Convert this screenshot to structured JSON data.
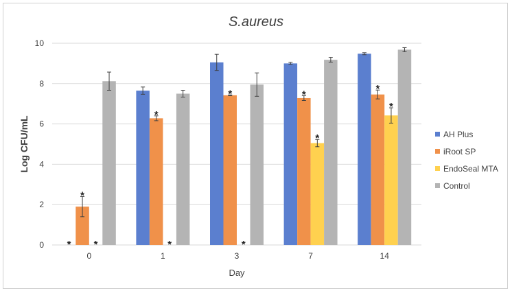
{
  "chart_data": {
    "type": "bar",
    "title": "S.aureus",
    "xlabel": "Day",
    "ylabel": "Log CFU/mL",
    "ylim": [
      0,
      10
    ],
    "yticks": [
      0,
      2,
      4,
      6,
      8,
      10
    ],
    "categories": [
      "0",
      "1",
      "3",
      "7",
      "14"
    ],
    "grid": true,
    "legend_position": "right",
    "series": [
      {
        "name": "AH Plus",
        "color": "#5b7fcf",
        "values": [
          0,
          7.65,
          9.05,
          9.0,
          9.48
        ],
        "errors": [
          0,
          0.18,
          0.4,
          0.05,
          0.05
        ],
        "significant": [
          true,
          false,
          false,
          false,
          false
        ]
      },
      {
        "name": "iRoot SP",
        "color": "#f0914a",
        "values": [
          1.9,
          6.28,
          7.42,
          7.28,
          7.46
        ],
        "errors": [
          0.5,
          0.12,
          0.02,
          0.12,
          0.22
        ],
        "significant": [
          true,
          true,
          true,
          true,
          true
        ]
      },
      {
        "name": "EndoSeal MTA",
        "color": "#ffd14f",
        "values": [
          0,
          0,
          0,
          5.05,
          6.42
        ],
        "errors": [
          0,
          0,
          0,
          0.18,
          0.38
        ],
        "significant": [
          true,
          true,
          true,
          true,
          true
        ]
      },
      {
        "name": "Control",
        "color": "#b4b4b4",
        "values": [
          8.12,
          7.5,
          7.95,
          9.18,
          9.68
        ],
        "errors": [
          0.45,
          0.17,
          0.58,
          0.12,
          0.1
        ],
        "significant": [
          false,
          false,
          false,
          false,
          false
        ]
      }
    ],
    "significance_marker": "*"
  }
}
